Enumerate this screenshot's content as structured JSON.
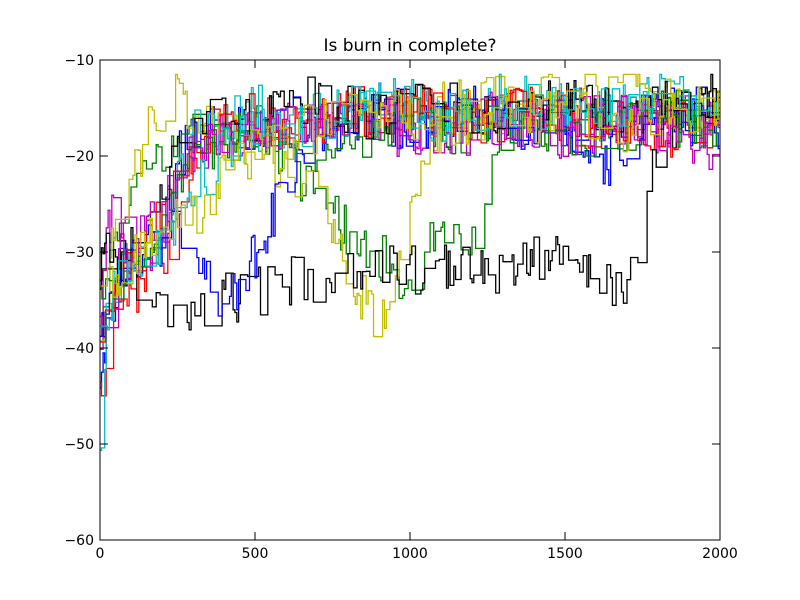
{
  "chart_data": {
    "type": "line",
    "title": "Is burn in complete?",
    "xlabel": "",
    "ylabel": "",
    "xlim": [
      0,
      2000
    ],
    "ylim": [
      -60,
      -10
    ],
    "x_ticks": [
      0,
      500,
      1000,
      1500,
      2000
    ],
    "x_tick_labels": [
      "0",
      "500",
      "1000",
      "1500",
      "2000"
    ],
    "y_ticks": [
      -60,
      -50,
      -40,
      -30,
      -20,
      -10
    ],
    "y_tick_labels": [
      "−60",
      "−50",
      "−40",
      "−30",
      "−20",
      "−10"
    ],
    "grid": false,
    "legend": "none",
    "colors": [
      "#0000ff",
      "#008000",
      "#ff0000",
      "#00bfbf",
      "#bf00bf",
      "#bfbf00",
      "#000000"
    ],
    "series": [
      {
        "color": "#0000ff",
        "x": [
          0,
          20,
          50,
          100,
          150,
          200,
          250,
          300,
          350,
          400,
          500,
          600,
          700,
          800,
          900,
          1000,
          1100,
          1200,
          1300,
          1400,
          1500,
          1600,
          1700,
          1800,
          1900,
          2000
        ],
        "y": [
          -45,
          -38,
          -35,
          -33,
          -31,
          -26,
          -20,
          -17,
          -16,
          -18,
          -17,
          -16,
          -17,
          -16,
          -15,
          -16,
          -17,
          -15,
          -16,
          -17,
          -18,
          -16,
          -17,
          -16,
          -15,
          -16
        ]
      },
      {
        "color": "#008000",
        "x": [
          0,
          20,
          50,
          100,
          150,
          200,
          250,
          300,
          350,
          400,
          500,
          600,
          700,
          800,
          900,
          1000,
          1100,
          1200,
          1300,
          1400,
          1500,
          1600,
          1700,
          1800,
          1900,
          2000
        ],
        "y": [
          -40,
          -34,
          -30,
          -22,
          -20,
          -19,
          -18,
          -17,
          -17,
          -16,
          -17,
          -20,
          -25,
          -28,
          -30,
          -35,
          -26,
          -30,
          -17,
          -16,
          -18,
          -16,
          -17,
          -15,
          -16,
          -17
        ]
      },
      {
        "color": "#ff0000",
        "x": [
          0,
          20,
          50,
          100,
          150,
          200,
          250,
          300,
          350,
          400,
          500,
          600,
          700,
          800,
          900,
          1000,
          1100,
          1200,
          1300,
          1400,
          1500,
          1600,
          1700,
          1800,
          1900,
          2000
        ],
        "y": [
          -46,
          -40,
          -37,
          -35,
          -33,
          -32,
          -28,
          -22,
          -17,
          -16,
          -17,
          -16,
          -16,
          -15,
          -16,
          -15,
          -16,
          -15,
          -16,
          -15,
          -16,
          -15,
          -16,
          -17,
          -16,
          -15
        ]
      },
      {
        "color": "#00bfbf",
        "x": [
          0,
          20,
          50,
          100,
          150,
          200,
          250,
          300,
          350,
          400,
          500,
          600,
          700,
          800,
          900,
          1000,
          1100,
          1200,
          1300,
          1400,
          1500,
          1600,
          1700,
          1800,
          1900,
          2000
        ],
        "y": [
          -52,
          -38,
          -33,
          -31,
          -30,
          -27,
          -22,
          -18,
          -17,
          -16,
          -15,
          -16,
          -15,
          -16,
          -15,
          -14,
          -15,
          -16,
          -15,
          -14,
          -15,
          -16,
          -15,
          -14,
          -13,
          -14
        ]
      },
      {
        "color": "#bf00bf",
        "x": [
          0,
          20,
          50,
          100,
          150,
          200,
          250,
          300,
          350,
          400,
          500,
          600,
          700,
          800,
          900,
          1000,
          1100,
          1200,
          1300,
          1400,
          1500,
          1600,
          1700,
          1800,
          1900,
          2000
        ],
        "y": [
          -42,
          -26,
          -27,
          -30,
          -31,
          -28,
          -24,
          -20,
          -18,
          -17,
          -16,
          -17,
          -16,
          -15,
          -16,
          -17,
          -16,
          -15,
          -16,
          -17,
          -16,
          -15,
          -16,
          -17,
          -16,
          -17
        ]
      },
      {
        "color": "#bfbf00",
        "x": [
          0,
          20,
          50,
          100,
          150,
          200,
          250,
          300,
          350,
          400,
          500,
          600,
          700,
          800,
          900,
          1000,
          1100,
          1200,
          1300,
          1400,
          1500,
          1600,
          1700,
          1800,
          1900,
          2000
        ],
        "y": [
          -39,
          -33,
          -28,
          -23,
          -18,
          -15,
          -14,
          -16,
          -17,
          -18,
          -19,
          -22,
          -25,
          -32,
          -38,
          -24,
          -15,
          -14,
          -13,
          -12,
          -13,
          -14,
          -13,
          -14,
          -15,
          -14
        ]
      },
      {
        "color": "#000000",
        "x": [
          0,
          20,
          50,
          100,
          150,
          200,
          250,
          300,
          350,
          400,
          500,
          600,
          700,
          800,
          900,
          1000,
          1100,
          1200,
          1300,
          1400,
          1500,
          1600,
          1700,
          1800,
          1900,
          2000
        ],
        "y": [
          -32,
          -30,
          -31,
          -33,
          -34,
          -36,
          -38,
          -37,
          -36,
          -35,
          -34,
          -33,
          -33,
          -32,
          -31,
          -32,
          -31,
          -32,
          -33,
          -31,
          -30,
          -33,
          -34,
          -19,
          -14,
          -13
        ]
      },
      {
        "color": "#0000ff",
        "x": [
          0,
          30,
          60,
          100,
          150,
          200,
          250,
          300,
          350,
          400,
          500,
          600,
          700,
          800,
          900,
          1000,
          1100,
          1200,
          1300,
          1400,
          1500,
          1600,
          1700,
          1800,
          1900,
          2000
        ],
        "y": [
          -38,
          -35,
          -32,
          -30,
          -30,
          -29,
          -28,
          -30,
          -33,
          -36,
          -30,
          -23,
          -18,
          -17,
          -16,
          -17,
          -16,
          -15,
          -16,
          -17,
          -16,
          -22,
          -18,
          -16,
          -17,
          -18
        ]
      },
      {
        "color": "#ff0000",
        "x": [
          0,
          30,
          60,
          100,
          150,
          200,
          250,
          300,
          350,
          400,
          500,
          600,
          700,
          800,
          900,
          1000,
          1100,
          1200,
          1300,
          1400,
          1500,
          1600,
          1700,
          1800,
          1900,
          2000
        ],
        "y": [
          -42,
          -36,
          -33,
          -31,
          -29,
          -25,
          -20,
          -19,
          -18,
          -17,
          -16,
          -17,
          -16,
          -17,
          -16,
          -15,
          -16,
          -17,
          -16,
          -15,
          -16,
          -17,
          -16,
          -17,
          -18,
          -16
        ]
      },
      {
        "color": "#008000",
        "x": [
          0,
          30,
          60,
          100,
          150,
          200,
          250,
          300,
          350,
          400,
          500,
          600,
          700,
          800,
          900,
          1000,
          1100,
          1200,
          1300,
          1400,
          1500,
          1600,
          1700,
          1800,
          1900,
          2000
        ],
        "y": [
          -36,
          -33,
          -31,
          -30,
          -29,
          -28,
          -24,
          -21,
          -19,
          -18,
          -17,
          -18,
          -19,
          -18,
          -17,
          -16,
          -17,
          -18,
          -17,
          -16,
          -17,
          -18,
          -17,
          -16,
          -17,
          -16
        ]
      },
      {
        "color": "#000000",
        "x": [
          0,
          30,
          60,
          100,
          150,
          200,
          250,
          300,
          350,
          400,
          500,
          600,
          700,
          800,
          900,
          1000,
          1100,
          1200,
          1300,
          1400,
          1500,
          1600,
          1700,
          1800,
          1900,
          2000
        ],
        "y": [
          -34,
          -31,
          -30,
          -29,
          -27,
          -22,
          -18,
          -17,
          -16,
          -15,
          -16,
          -15,
          -14,
          -15,
          -16,
          -15,
          -14,
          -15,
          -16,
          -15,
          -14,
          -15,
          -16,
          -15,
          -14,
          -15
        ]
      },
      {
        "color": "#bf00bf",
        "x": [
          0,
          30,
          60,
          100,
          150,
          200,
          250,
          300,
          350,
          400,
          500,
          600,
          700,
          800,
          900,
          1000,
          1100,
          1200,
          1300,
          1400,
          1500,
          1600,
          1700,
          1800,
          1900,
          2000
        ],
        "y": [
          -37,
          -34,
          -31,
          -30,
          -28,
          -26,
          -22,
          -20,
          -19,
          -18,
          -17,
          -18,
          -17,
          -16,
          -17,
          -18,
          -19,
          -17,
          -16,
          -17,
          -18,
          -17,
          -16,
          -17,
          -18,
          -19
        ]
      },
      {
        "color": "#00bfbf",
        "x": [
          0,
          30,
          60,
          100,
          150,
          200,
          250,
          300,
          350,
          400,
          500,
          600,
          700,
          800,
          900,
          1000,
          1100,
          1200,
          1300,
          1400,
          1500,
          1600,
          1700,
          1800,
          1900,
          2000
        ],
        "y": [
          -40,
          -35,
          -33,
          -31,
          -30,
          -29,
          -27,
          -24,
          -21,
          -19,
          -18,
          -17,
          -16,
          -15,
          -16,
          -15,
          -16,
          -15,
          -14,
          -15,
          -16,
          -15,
          -16,
          -15,
          -14,
          -16
        ]
      },
      {
        "color": "#bfbf00",
        "x": [
          0,
          30,
          60,
          100,
          150,
          200,
          250,
          300,
          350,
          400,
          500,
          600,
          700,
          800,
          900,
          1000,
          1100,
          1200,
          1300,
          1400,
          1500,
          1600,
          1700,
          1800,
          1900,
          2000
        ],
        "y": [
          -36,
          -33,
          -32,
          -30,
          -29,
          -28,
          -27,
          -26,
          -25,
          -22,
          -19,
          -18,
          -17,
          -16,
          -15,
          -16,
          -17,
          -16,
          -15,
          -16,
          -15,
          -16,
          -17,
          -16,
          -15,
          -14
        ]
      }
    ]
  }
}
